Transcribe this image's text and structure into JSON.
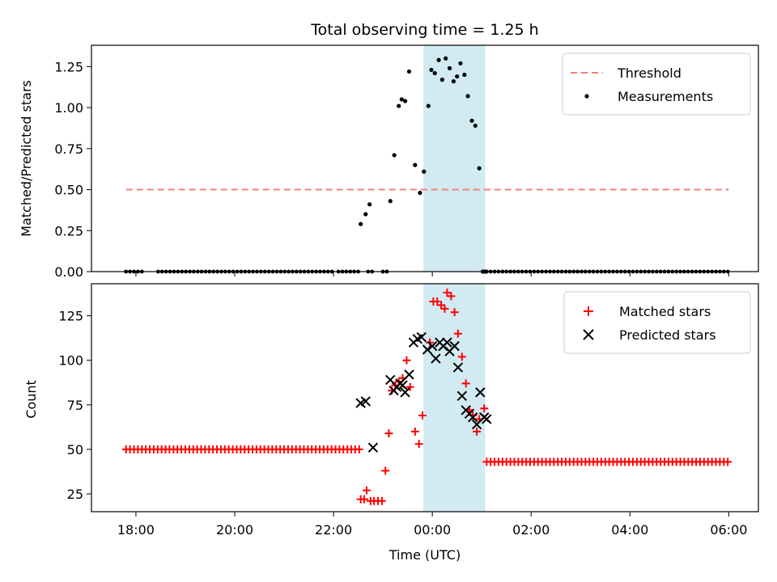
{
  "chart_data": {
    "type": "scatter",
    "title": "Total observing time = 1.25 h",
    "xlabel": "Time (UTC)",
    "x_units": "hours since 00:00 UTC",
    "xlim": [
      -6.9,
      6.6
    ],
    "xticks": [
      {
        "value": -6,
        "label": "18:00"
      },
      {
        "value": -4,
        "label": "20:00"
      },
      {
        "value": -2,
        "label": "22:00"
      },
      {
        "value": 0,
        "label": "00:00"
      },
      {
        "value": 2,
        "label": "02:00"
      },
      {
        "value": 4,
        "label": "04:00"
      },
      {
        "value": 6,
        "label": "06:00"
      }
    ],
    "observing_window": {
      "start": -0.18,
      "end": 1.07,
      "color": "#add8e6"
    },
    "panels": [
      {
        "ylabel": "Matched/Predicted stars",
        "ylim": [
          0,
          1.38
        ],
        "yticks": [
          "0.00",
          "0.25",
          "0.50",
          "0.75",
          "1.00",
          "1.25"
        ],
        "ytick_values": [
          0,
          0.25,
          0.5,
          0.75,
          1.0,
          1.25
        ],
        "legend": {
          "placement": "upper right",
          "entries": [
            "Threshold",
            "Measurements"
          ]
        },
        "threshold": {
          "name": "Threshold",
          "y": 0.5,
          "x": [
            -6.2,
            6.0
          ],
          "color": "#f08080"
        },
        "measurements": {
          "name": "Measurements",
          "color": "#000000",
          "x": [
            -1.45,
            -1.35,
            -1.27,
            -0.85,
            -0.77,
            -0.68,
            -0.62,
            -0.55,
            -0.47,
            -0.35,
            -0.25,
            -0.17,
            -0.08,
            -0.02,
            0.05,
            0.13,
            0.2,
            0.27,
            0.35,
            0.43,
            0.5,
            0.57,
            0.65,
            0.72,
            0.8,
            0.87,
            0.95,
            1.02,
            1.07
          ],
          "y": [
            0.29,
            0.35,
            0.41,
            0.43,
            0.71,
            1.01,
            1.05,
            1.04,
            1.22,
            0.65,
            0.48,
            0.61,
            1.01,
            1.23,
            1.21,
            1.29,
            1.17,
            1.3,
            1.24,
            1.16,
            1.19,
            1.27,
            1.2,
            1.07,
            0.92,
            0.89,
            0.63,
            0,
            0
          ]
        },
        "zero_segments": [
          {
            "from": -6.2,
            "to": -5.9,
            "step": 0.08
          },
          {
            "from": -5.55,
            "to": -2.05,
            "step": 0.08
          },
          {
            "from": -1.9,
            "to": -1.5,
            "step": 0.08
          },
          {
            "from": -1.3,
            "to": -1.25,
            "step": 0.08
          },
          {
            "from": -1.0,
            "to": -0.9,
            "step": 0.08
          },
          {
            "from": 1.1,
            "to": 6.0,
            "step": 0.08
          }
        ]
      },
      {
        "ylabel": "Count",
        "ylim": [
          15,
          143
        ],
        "yticks": [
          "25",
          "50",
          "75",
          "100",
          "125"
        ],
        "ytick_values": [
          25,
          50,
          75,
          100,
          125
        ],
        "legend": {
          "placement": "upper right",
          "entries": [
            "Matched stars",
            "Predicted stars"
          ]
        },
        "matched": {
          "name": "Matched stars",
          "color": "#ff0000",
          "segments": [
            {
              "from": -6.2,
              "to": -1.5,
              "step": 0.08,
              "y": 50
            },
            {
              "from": 1.1,
              "to": 6.0,
              "step": 0.08,
              "y": 43
            }
          ],
          "x": [
            -1.45,
            -1.38,
            -1.33,
            -1.25,
            -1.18,
            -1.1,
            -1.02,
            -0.95,
            -0.88,
            -0.82,
            -0.75,
            -0.68,
            -0.6,
            -0.52,
            -0.45,
            -0.35,
            -0.27,
            -0.2,
            -0.05,
            0.02,
            0.1,
            0.18,
            0.25,
            0.3,
            0.38,
            0.45,
            0.52,
            0.6,
            0.68,
            0.75,
            0.82,
            0.9,
            0.95,
            1.05
          ],
          "y": [
            22,
            22,
            27,
            21,
            21,
            21,
            21,
            38,
            59,
            83,
            86,
            88,
            90,
            100,
            85,
            60,
            53,
            69,
            110,
            133,
            133,
            131,
            129,
            138,
            136,
            127,
            115,
            102,
            87,
            72,
            69,
            60,
            67,
            73
          ]
        },
        "predicted": {
          "name": "Predicted stars",
          "color": "#000000",
          "x": [
            -1.45,
            -1.35,
            -1.2,
            -0.85,
            -0.78,
            -0.72,
            -0.65,
            -0.6,
            -0.55,
            -0.47,
            -0.38,
            -0.3,
            -0.22,
            -0.1,
            0.0,
            0.07,
            0.15,
            0.22,
            0.3,
            0.35,
            0.45,
            0.52,
            0.6,
            0.68,
            0.75,
            0.82,
            0.9,
            0.97,
            1.05,
            1.1
          ],
          "y": [
            76,
            77,
            51,
            89,
            83,
            85,
            87,
            86,
            82,
            92,
            110,
            112,
            113,
            106,
            108,
            101,
            110,
            108,
            110,
            105,
            108,
            96,
            80,
            72,
            70,
            68,
            64,
            82,
            68,
            67
          ]
        }
      }
    ]
  }
}
